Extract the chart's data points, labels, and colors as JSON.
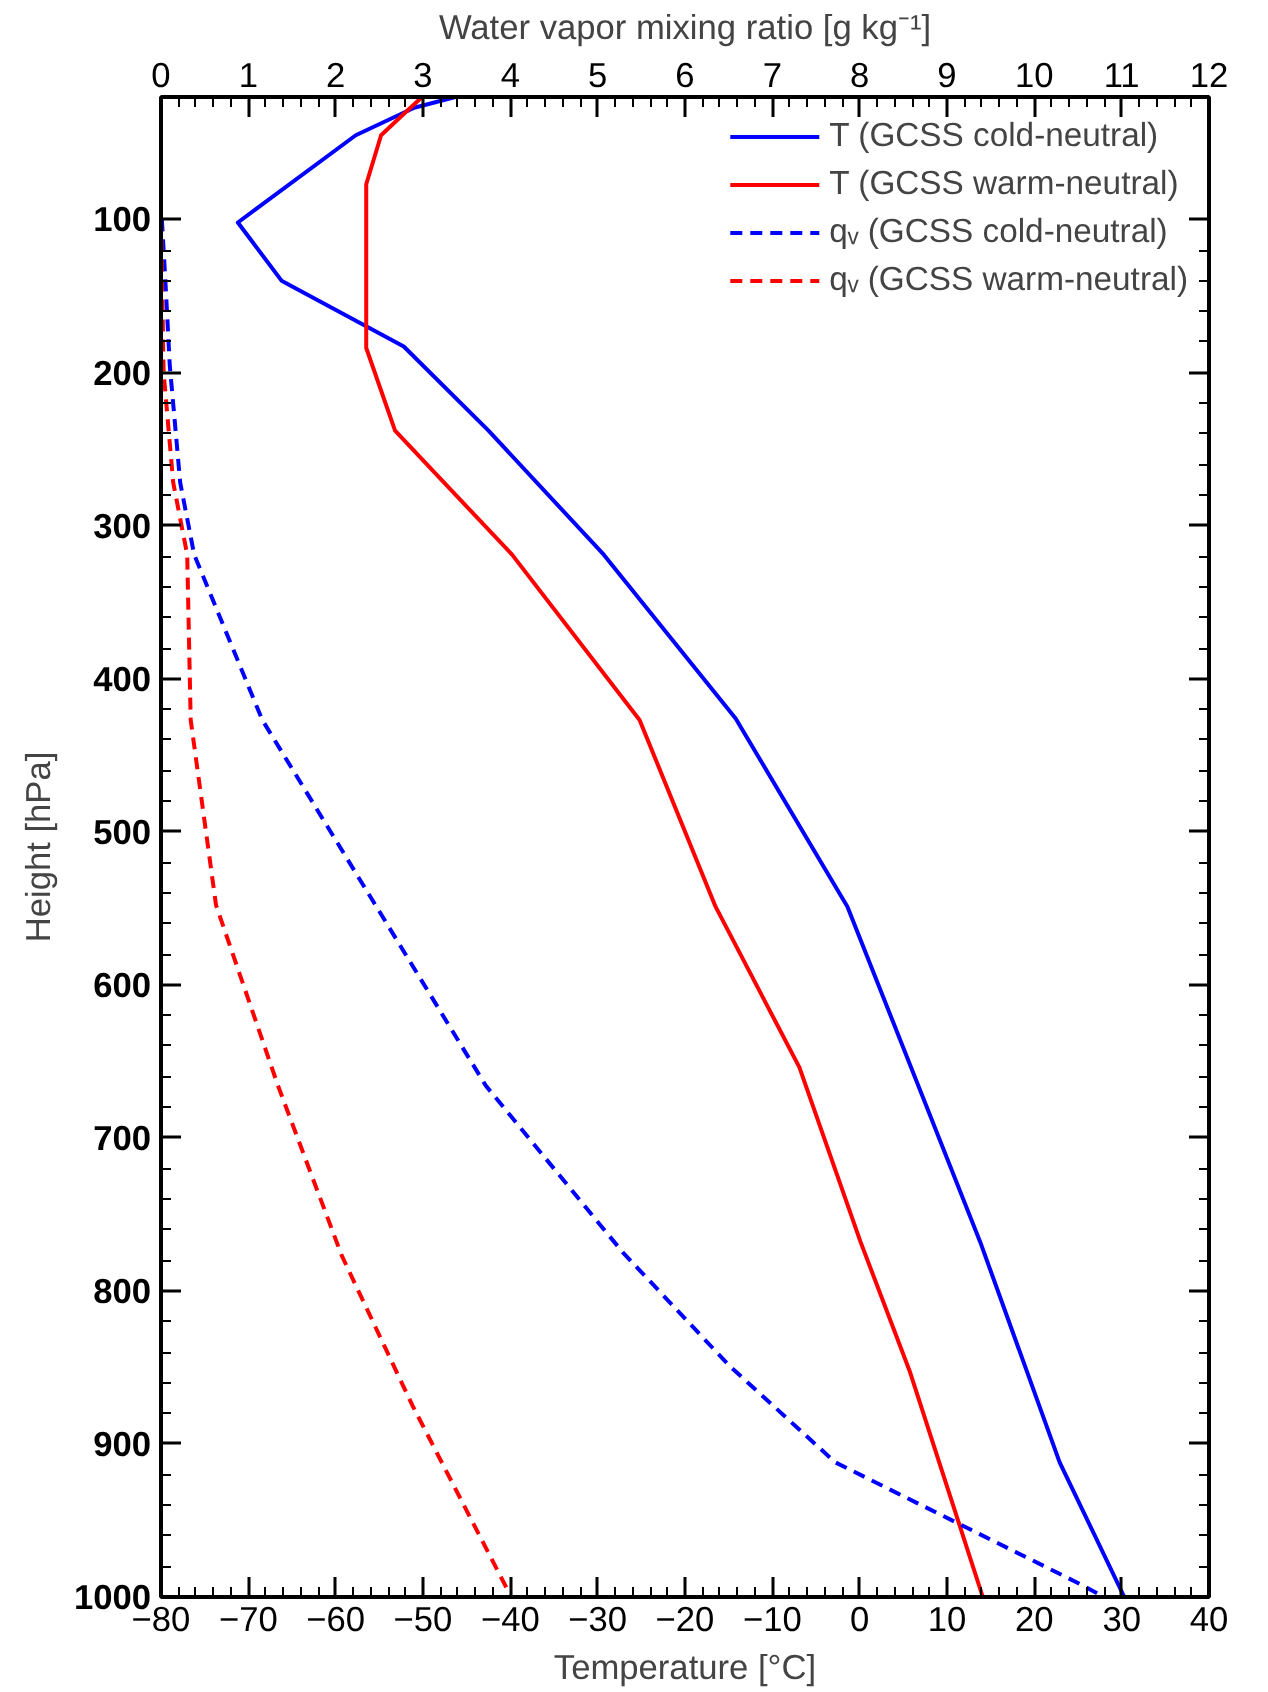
{
  "chart_data": {
    "type": "line",
    "xlabel": "Temperature [°C]",
    "ylabel": "Height [hPa]",
    "x2label": "Water vapor mixing ratio [g kg⁻¹]",
    "xlim": [
      -80,
      40
    ],
    "xticks": [
      -80,
      -70,
      -60,
      -50,
      -40,
      -30,
      -20,
      -10,
      0,
      10,
      20,
      30,
      40
    ],
    "x2lim": [
      0,
      12
    ],
    "x2ticks": [
      0,
      1,
      2,
      3,
      4,
      5,
      6,
      7,
      8,
      9,
      10,
      11,
      12
    ],
    "ylim": [
      1000,
      20
    ],
    "yticks": [
      100,
      200,
      300,
      400,
      500,
      600,
      700,
      800,
      900,
      1000
    ],
    "grid": false,
    "legend": "top right",
    "marker": "none",
    "series": [
      {
        "name": "T (GCSS cold-neutral)",
        "color": "#0000ff",
        "line_style": "solid",
        "x": [
          -46.3,
          -51,
          -57.7,
          -71.2,
          -66.2,
          -52.2,
          -42.5,
          -29.3,
          -14.2,
          -1.4,
          13.8,
          22.9,
          30.3
        ],
        "values": [
          20,
          27,
          45,
          102,
          140,
          183,
          238,
          319,
          426,
          549,
          768,
          912,
          1000
        ]
      },
      {
        "name": "T (GCSS warm-neutral)",
        "color": "#ff0000",
        "line_style": "solid",
        "x": [
          -50.1,
          -52,
          -54.8,
          -56.5,
          -56.5,
          -53.2,
          -39.8,
          -25.2,
          -16.5,
          -6.9,
          0.1,
          5.7,
          14.1
        ],
        "values": [
          20,
          30,
          45,
          77,
          184,
          238,
          319,
          427,
          549,
          654,
          768,
          852,
          1000
        ]
      },
      {
        "name": "qᵥ (GCSS cold-neutral)",
        "color": "#0000ff",
        "line_style": "dashed",
        "axis": "x2",
        "x": [
          0.01,
          0.05,
          0.1,
          0.22,
          0.38,
          1.16,
          3.72,
          5.29,
          6.51,
          7.72,
          10.47,
          10.8
        ],
        "values": [
          100,
          140,
          195,
          272,
          319,
          427,
          666,
          775,
          849,
          912,
          990,
          1000
        ]
      },
      {
        "name": "qᵥ (GCSS warm-neutral)",
        "color": "#ff0000",
        "line_style": "dashed",
        "axis": "x2",
        "x": [
          0,
          0.03,
          0.14,
          0.3,
          0.34,
          0.63,
          1.34,
          2.07,
          2.88,
          4.01
        ],
        "values": [
          100,
          200,
          272,
          319,
          427,
          548,
          666,
          777,
          875,
          1000
        ]
      }
    ]
  }
}
